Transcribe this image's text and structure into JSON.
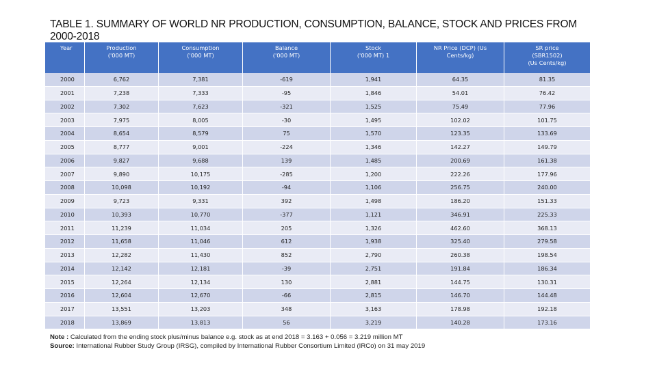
{
  "title": "TABLE 1. SUMMARY OF WORLD NR PRODUCTION, CONSUMPTION, BALANCE, STOCK AND PRICES FROM 2000-2018",
  "columns": [
    "Year",
    "Production\n('000 MT)",
    "Consumption\n('000 MT)",
    "Balance\n('000 MT)",
    "Stock\n('000 MT) 1",
    "NR Price (DCP) (Us\nCents/kg)",
    "SR price\n(SBR1502)\n(Us Cents/kg)"
  ],
  "rows": [
    [
      "2000",
      "6,762",
      "7,381",
      "-619",
      "1,941",
      "64.35",
      "81.35"
    ],
    [
      "2001",
      "7,238",
      "7,333",
      "-95",
      "1,846",
      "54.01",
      "76.42"
    ],
    [
      "2002",
      "7,302",
      "7,623",
      "-321",
      "1,525",
      "75.49",
      "77.96"
    ],
    [
      "2003",
      "7,975",
      "8,005",
      "-30",
      "1,495",
      "102.02",
      "101.75"
    ],
    [
      "2004",
      "8,654",
      "8,579",
      "75",
      "1,570",
      "123.35",
      "133.69"
    ],
    [
      "2005",
      "8,777",
      "9,001",
      "-224",
      "1,346",
      "142.27",
      "149.79"
    ],
    [
      "2006",
      "9,827",
      "9,688",
      "139",
      "1,485",
      "200.69",
      "161.38"
    ],
    [
      "2007",
      "9,890",
      "10,175",
      "-285",
      "1,200",
      "222.26",
      "177.96"
    ],
    [
      "2008",
      "10,098",
      "10,192",
      "-94",
      "1,106",
      "256.75",
      "240.00"
    ],
    [
      "2009",
      "9,723",
      "9,331",
      "392",
      "1,498",
      "186.20",
      "151.33"
    ],
    [
      "2010",
      "10,393",
      "10,770",
      "-377",
      "1,121",
      "346.91",
      "225.33"
    ],
    [
      "2011",
      "11,239",
      "11,034",
      "205",
      "1,326",
      "462.60",
      "368.13"
    ],
    [
      "2012",
      "11,658",
      "11,046",
      "612",
      "1,938",
      "325.40",
      "279.58"
    ],
    [
      "2013",
      "12,282",
      "11,430",
      "852",
      "2,790",
      "260.38",
      "198.54"
    ],
    [
      "2014",
      "12,142",
      "12,181",
      "-39",
      "2,751",
      "191.84",
      "186.34"
    ],
    [
      "2015",
      "12,264",
      "12,134",
      "130",
      "2,881",
      "144.75",
      "130.31"
    ],
    [
      "2016",
      "12,604",
      "12,670",
      "-66",
      "2,815",
      "146.70",
      "144.48"
    ],
    [
      "2017",
      "13,551",
      "13,203",
      "348",
      "3,163",
      "178.98",
      "192.18"
    ],
    [
      "2018",
      "13,869",
      "13,813",
      "56",
      "3,219",
      "140.28",
      "173.16"
    ]
  ],
  "notes": {
    "note_label": "Note :",
    "note_text": "Calculated from the ending stock plus/minus balance e.g. stock as at end 2018 = 3.163 + 0.056 = 3.219 million MT",
    "source_label": "Source:",
    "source_text": "International Rubber Study Group (IRSG), compiled by International Rubber Consortium Limited (IRCo) on 31 may 2019"
  }
}
